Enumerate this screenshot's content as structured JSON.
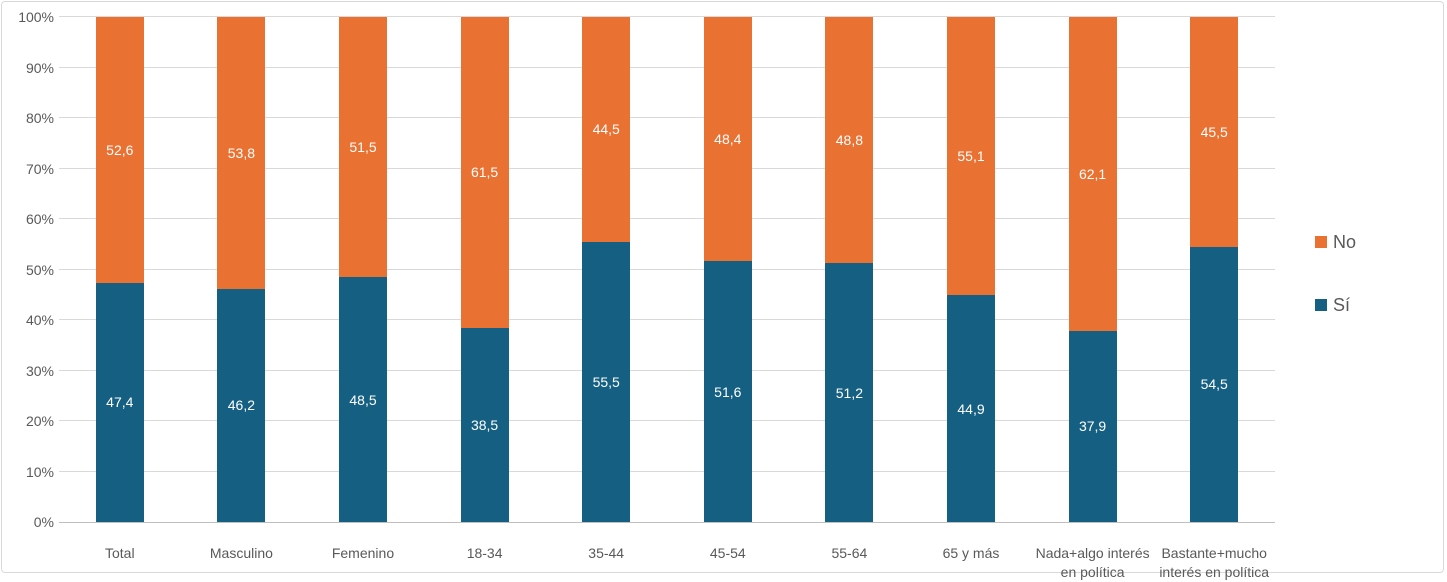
{
  "chart_data": {
    "type": "bar",
    "subtype": "stacked-100-percent",
    "title": "",
    "xlabel": "",
    "ylabel": "",
    "ylim": [
      0,
      100
    ],
    "grid": true,
    "y_tick_step": 10,
    "y_tick_labels": [
      "0%",
      "10%",
      "20%",
      "30%",
      "40%",
      "50%",
      "60%",
      "70%",
      "80%",
      "90%",
      "100%"
    ],
    "categories": [
      "Total",
      "Masculino",
      "Femenino",
      "18-34",
      "35-44",
      "45-54",
      "55-64",
      "65 y más",
      "Nada+algo interés en política",
      "Bastante+mucho interés en política"
    ],
    "category_label_lines": [
      [
        "Total"
      ],
      [
        "Masculino"
      ],
      [
        "Femenino"
      ],
      [
        "18-34"
      ],
      [
        "35-44"
      ],
      [
        "45-54"
      ],
      [
        "55-64"
      ],
      [
        "65 y más"
      ],
      [
        "Nada+algo interés",
        "en política"
      ],
      [
        "Bastante+mucho",
        "interés en política"
      ]
    ],
    "series": [
      {
        "name": "Sí",
        "color": "#156082",
        "values": [
          47.4,
          46.2,
          48.5,
          38.5,
          55.5,
          51.6,
          51.2,
          44.9,
          37.9,
          54.5
        ],
        "labels": [
          "47,4",
          "46,2",
          "48,5",
          "38,5",
          "55,5",
          "51,6",
          "51,2",
          "44,9",
          "37,9",
          "54,5"
        ]
      },
      {
        "name": "No",
        "color": "#E97132",
        "values": [
          52.6,
          53.8,
          51.5,
          61.5,
          44.5,
          48.4,
          48.8,
          55.1,
          62.1,
          45.5
        ],
        "labels": [
          "52,6",
          "53,8",
          "51,5",
          "61,5",
          "44,5",
          "48,4",
          "48,8",
          "55,1",
          "62,1",
          "45,5"
        ]
      }
    ],
    "legend": {
      "position": "right",
      "entries": [
        {
          "label": "No",
          "color": "#E97132"
        },
        {
          "label": "Sí",
          "color": "#156082"
        }
      ]
    }
  },
  "colors": {
    "series_si": "#156082",
    "series_no": "#E97132",
    "axis_text": "#595959",
    "gridline": "#D9D9D9",
    "axis_line": "#BFBFBF",
    "data_label": "#FFFFFF",
    "chart_border": "#D9D9D9",
    "background": "#FFFFFF"
  }
}
